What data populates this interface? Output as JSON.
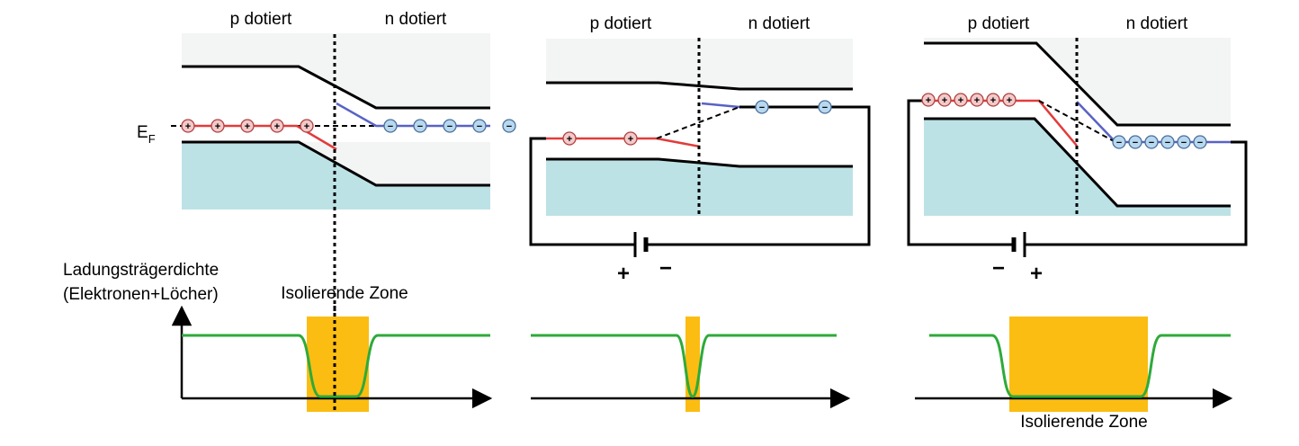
{
  "colors": {
    "conduction_region": "#f3f4f4",
    "valence_region": "#bde2e6",
    "band_edge": "#000000",
    "hole_level": "#e23b3b",
    "electron_level": "#5962c4",
    "hole_fill": "#f3c9c9",
    "electron_fill": "#b7d8ef",
    "carrier_density": "#2eaa3a",
    "insulating_zone": "#fcbd12"
  },
  "labels": {
    "p_doped": "p dotiert",
    "n_doped": "n dotiert",
    "fermi_main": "E",
    "fermi_sub": "F",
    "carrier_density_line1": "Ladungsträgerdichte",
    "carrier_density_line2": "(Elektronen+Löcher)",
    "insulating_zone": "Isolierende Zone",
    "plus": "+",
    "minus": "−",
    "hole_sign": "+",
    "electron_sign": "−"
  },
  "panels": [
    {
      "name": "equilibrium",
      "holes": 5,
      "electrons": 5
    },
    {
      "name": "forward-bias",
      "holes": 2,
      "electrons": 2,
      "bias_left": "+",
      "bias_right": "−"
    },
    {
      "name": "reverse-bias",
      "holes": 6,
      "electrons": 6,
      "bias_left": "−",
      "bias_right": "+"
    }
  ]
}
